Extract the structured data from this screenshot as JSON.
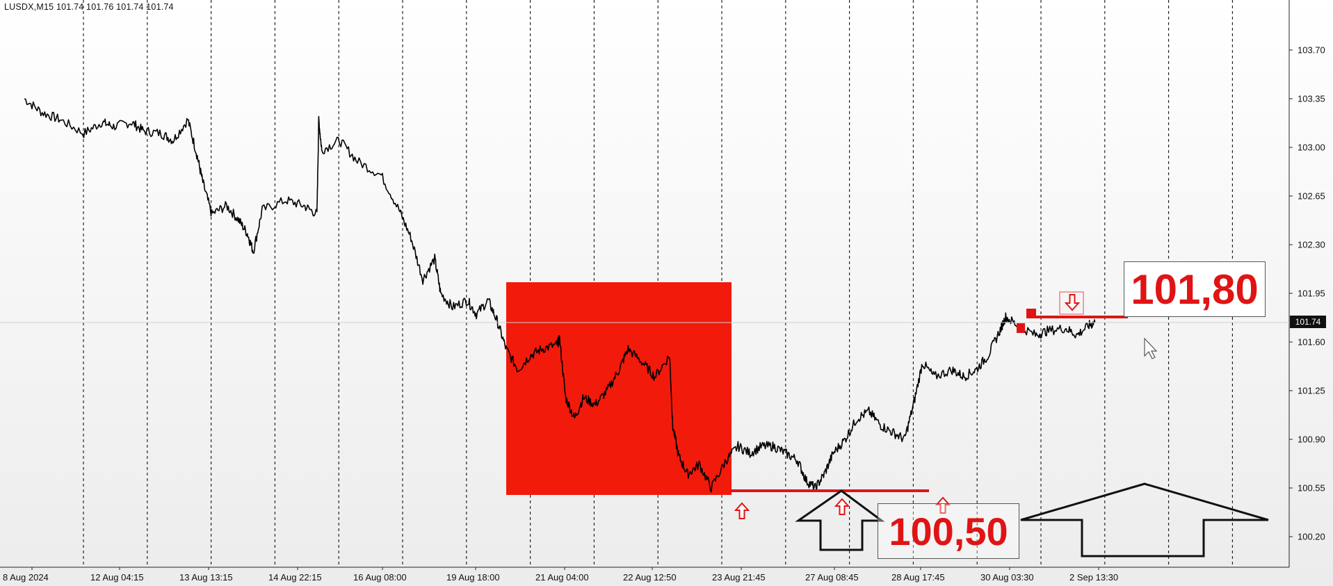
{
  "header": {
    "text": "LUSDX,M15  101.74 101.76 101.74 101.74"
  },
  "last_price_tag": "101.74",
  "annotations": {
    "high_label": "101,80",
    "low_label": "100,50"
  },
  "colors": {
    "accent": "#e01414",
    "price_line": "#000000",
    "background": "#f3f3f3"
  },
  "chart_data": {
    "type": "line",
    "symbol": "LUSDX",
    "timeframe": "M15",
    "ohlc": [
      101.74,
      101.76,
      101.74,
      101.74
    ],
    "y_ticks": [
      "103.70",
      "103.35",
      "103.00",
      "102.65",
      "102.30",
      "101.95",
      "101.60",
      "101.25",
      "100.90",
      "100.55",
      "100.20"
    ],
    "ylim": [
      100.0,
      103.9
    ],
    "x_ticks": [
      "8 Aug 2024",
      "12 Aug 04:15",
      "13 Aug 13:15",
      "14 Aug 22:15",
      "16 Aug 08:00",
      "19 Aug 18:00",
      "21 Aug 04:00",
      "22 Aug 12:50",
      "23 Aug 21:45",
      "27 Aug 08:45",
      "28 Aug 17:45",
      "30 Aug 03:30",
      "2 Sep 13:30"
    ],
    "grid": "vertical dashed",
    "series": [
      {
        "values_by_tick": [
          [
            0,
            103.35
          ],
          [
            0.3,
            103.25
          ],
          [
            0.6,
            103.2
          ],
          [
            1.0,
            103.1
          ],
          [
            1.3,
            103.18
          ],
          [
            1.5,
            103.15
          ],
          [
            1.8,
            103.18
          ],
          [
            2.0,
            103.12
          ],
          [
            2.3,
            103.1
          ],
          [
            2.5,
            103.05
          ],
          [
            2.75,
            103.2
          ],
          [
            2.9,
            102.95
          ],
          [
            3.0,
            102.75
          ],
          [
            3.15,
            102.52
          ],
          [
            3.4,
            102.58
          ],
          [
            3.6,
            102.48
          ],
          [
            3.75,
            102.38
          ],
          [
            3.85,
            102.25
          ],
          [
            4.0,
            102.55
          ],
          [
            4.4,
            102.62
          ],
          [
            4.7,
            102.58
          ],
          [
            4.92,
            102.52
          ],
          [
            4.95,
            103.2
          ],
          [
            5.0,
            102.98
          ],
          [
            5.3,
            103.05
          ],
          [
            5.6,
            102.9
          ],
          [
            6.0,
            102.8
          ],
          [
            6.3,
            102.55
          ],
          [
            6.5,
            102.35
          ],
          [
            6.7,
            102.05
          ],
          [
            6.9,
            102.2
          ],
          [
            7.0,
            101.95
          ],
          [
            7.2,
            101.85
          ],
          [
            7.45,
            101.9
          ],
          [
            7.6,
            101.8
          ],
          [
            7.8,
            101.9
          ],
          [
            7.95,
            101.75
          ],
          [
            8.1,
            101.55
          ],
          [
            8.3,
            101.4
          ],
          [
            8.5,
            101.5
          ],
          [
            8.7,
            101.55
          ],
          [
            8.95,
            101.58
          ],
          [
            9.0,
            101.62
          ],
          [
            9.1,
            101.2
          ],
          [
            9.25,
            101.05
          ],
          [
            9.4,
            101.2
          ],
          [
            9.6,
            101.15
          ],
          [
            9.8,
            101.25
          ],
          [
            10.0,
            101.4
          ],
          [
            10.15,
            101.55
          ],
          [
            10.4,
            101.45
          ],
          [
            10.6,
            101.35
          ],
          [
            10.85,
            101.5
          ],
          [
            10.9,
            101.0
          ],
          [
            11.0,
            100.78
          ],
          [
            11.15,
            100.65
          ],
          [
            11.35,
            100.72
          ],
          [
            11.55,
            100.55
          ],
          [
            11.8,
            100.75
          ],
          [
            12.0,
            100.85
          ],
          [
            12.2,
            100.8
          ],
          [
            12.4,
            100.85
          ],
          [
            12.6,
            100.85
          ],
          [
            12.8,
            100.8
          ],
          [
            13.0,
            100.75
          ],
          [
            13.15,
            100.6
          ],
          [
            13.3,
            100.55
          ],
          [
            13.45,
            100.65
          ],
          [
            13.6,
            100.8
          ],
          [
            13.8,
            100.9
          ],
          [
            14.0,
            101.05
          ],
          [
            14.2,
            101.1
          ],
          [
            14.4,
            101.0
          ],
          [
            14.6,
            100.95
          ],
          [
            14.8,
            100.9
          ],
          [
            14.95,
            101.15
          ],
          [
            15.1,
            101.45
          ],
          [
            15.3,
            101.35
          ],
          [
            15.6,
            101.4
          ],
          [
            15.8,
            101.35
          ],
          [
            16.0,
            101.4
          ],
          [
            16.2,
            101.5
          ],
          [
            16.4,
            101.68
          ],
          [
            16.5,
            101.78
          ],
          [
            16.7,
            101.72
          ],
          [
            17.0,
            101.65
          ],
          [
            17.2,
            101.68
          ],
          [
            17.5,
            101.7
          ],
          [
            17.7,
            101.65
          ],
          [
            17.9,
            101.72
          ],
          [
            18.0,
            101.74
          ]
        ]
      }
    ],
    "shaded_zone": {
      "y_range": [
        100.5,
        102.03
      ]
    },
    "levels": [
      {
        "label": "101,80",
        "value": 101.8
      },
      {
        "label": "100,50",
        "value": 100.5
      }
    ],
    "last_price": 101.74
  }
}
